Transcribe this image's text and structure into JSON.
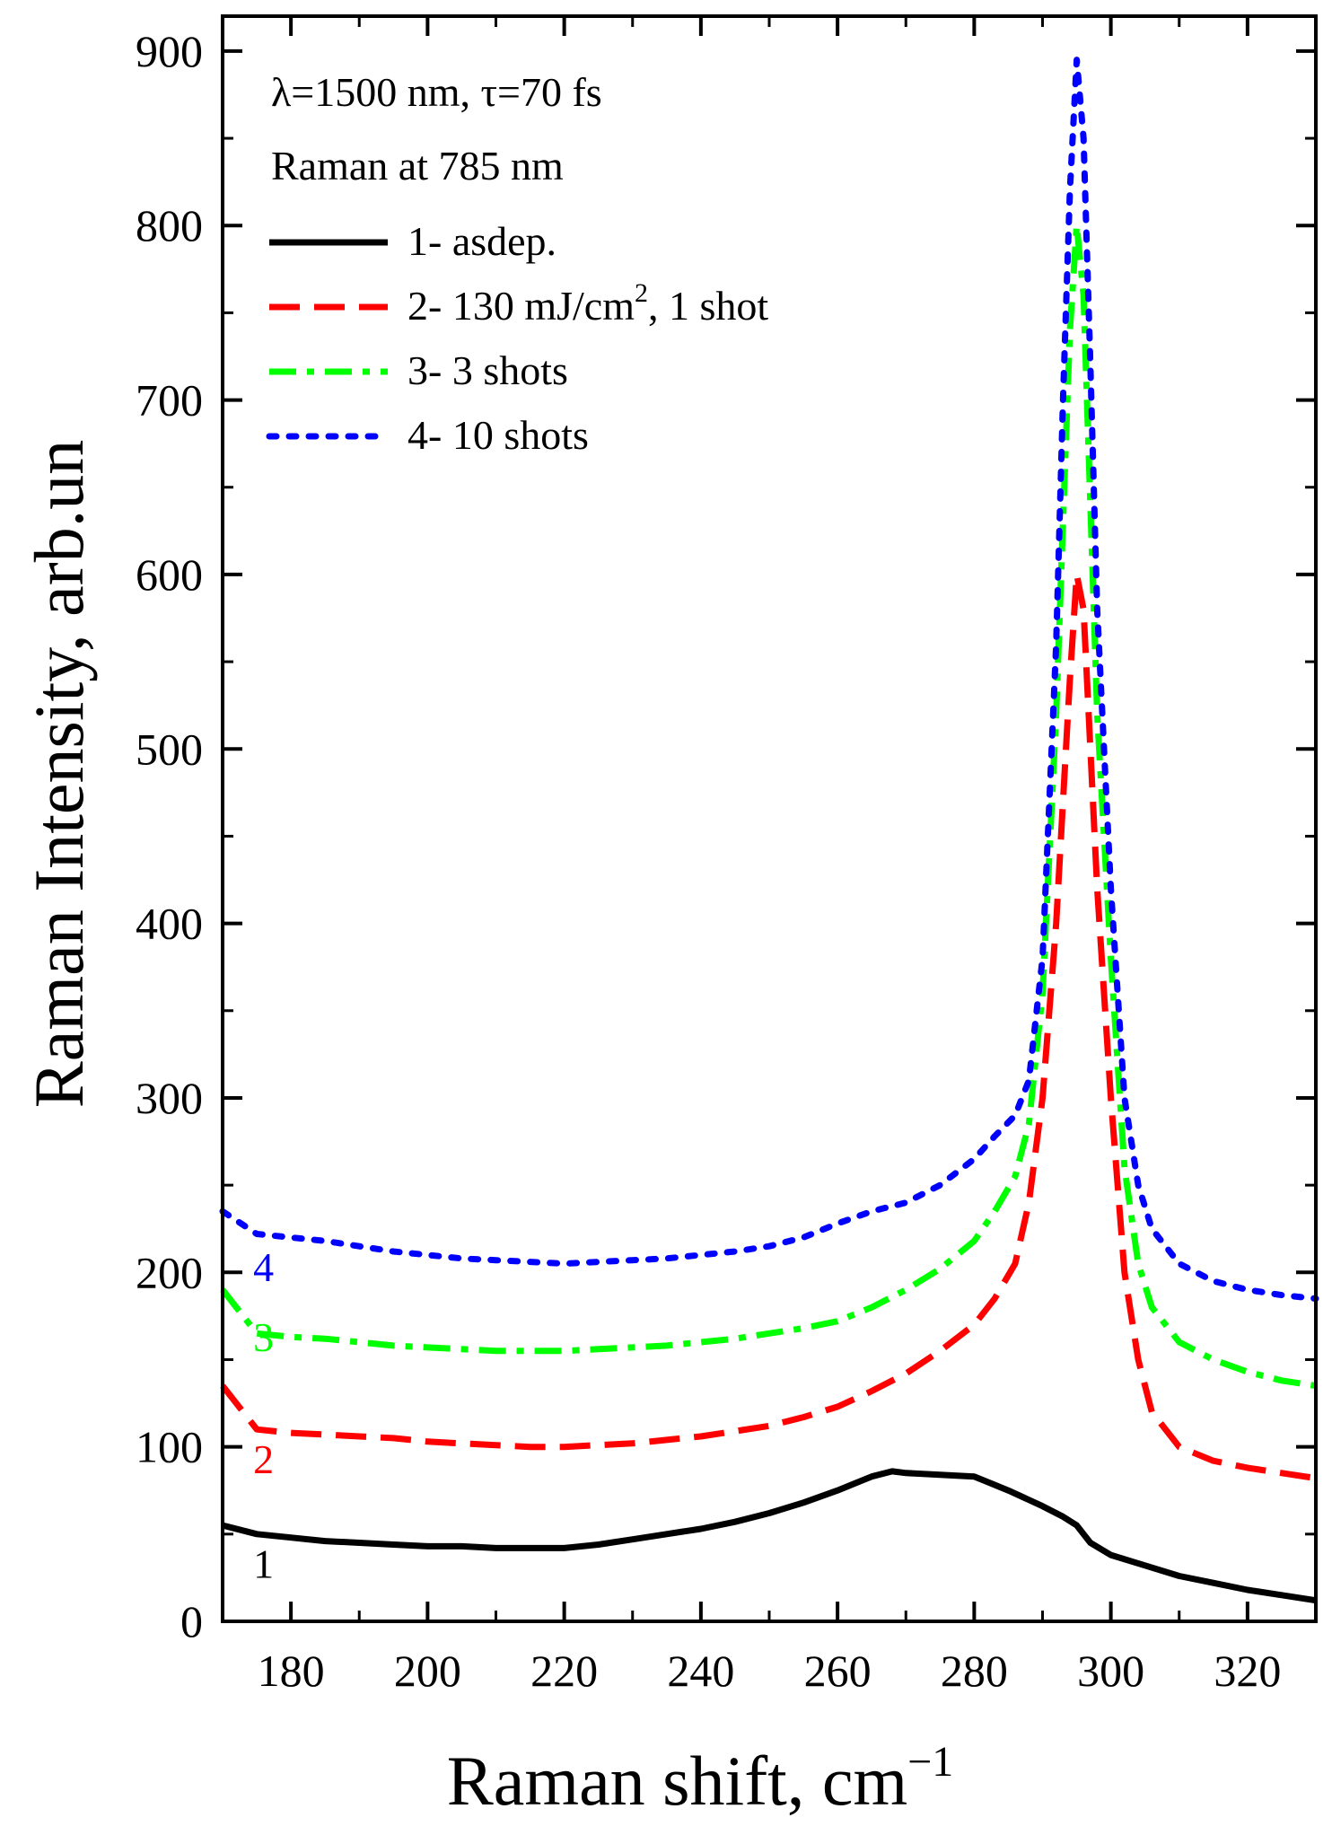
{
  "chart_data": {
    "type": "line",
    "xlabel": "Raman shift, cm",
    "xlabel_superscript": "−1",
    "ylabel": "Raman Intensity, arb.un",
    "xlim": [
      170,
      330
    ],
    "ylim": [
      0,
      920
    ],
    "xticks": [
      180,
      200,
      220,
      240,
      260,
      280,
      300,
      320
    ],
    "yticks": [
      0,
      100,
      200,
      300,
      400,
      500,
      600,
      700,
      800,
      900
    ],
    "annotations": {
      "line1": "λ=1500 nm, τ=70 fs",
      "line2": "Raman at 785 nm"
    },
    "legend": {
      "position": "top-left",
      "entries": [
        {
          "series": 0,
          "text": "1- asdep."
        },
        {
          "series": 1,
          "text": "2- 130 mJ/cm",
          "sup": "2",
          "after": ", 1 shot"
        },
        {
          "series": 2,
          "text": "3- 3 shots"
        },
        {
          "series": 3,
          "text": "4- 10 shots"
        }
      ]
    },
    "curve_labels": [
      {
        "text": "1",
        "x": 176,
        "y": 25,
        "series": 0
      },
      {
        "text": "2",
        "x": 176,
        "y": 85,
        "series": 1
      },
      {
        "text": "3",
        "x": 176,
        "y": 155,
        "series": 2
      },
      {
        "text": "4",
        "x": 176,
        "y": 195,
        "series": 3
      }
    ],
    "series": [
      {
        "name": "1- asdep.",
        "color": "#000000",
        "style": "solid",
        "x": [
          170,
          175,
          180,
          185,
          190,
          195,
          200,
          205,
          210,
          215,
          220,
          225,
          230,
          235,
          240,
          245,
          250,
          255,
          260,
          265,
          268,
          270,
          275,
          280,
          285,
          290,
          293,
          295,
          297,
          300,
          305,
          310,
          315,
          320,
          325,
          330
        ],
        "y": [
          55,
          50,
          48,
          46,
          45,
          44,
          43,
          43,
          42,
          42,
          42,
          44,
          47,
          50,
          53,
          57,
          62,
          68,
          75,
          83,
          86,
          85,
          84,
          83,
          75,
          66,
          60,
          55,
          45,
          38,
          32,
          26,
          22,
          18,
          15,
          12
        ]
      },
      {
        "name": "2- 130 mJ/cm2, 1 shot",
        "color": "#ff0000",
        "style": "dash",
        "x": [
          170,
          175,
          180,
          185,
          190,
          195,
          200,
          205,
          210,
          215,
          220,
          225,
          230,
          235,
          240,
          245,
          250,
          255,
          260,
          265,
          270,
          275,
          280,
          283,
          286,
          288,
          290,
          292,
          293,
          294,
          295,
          296,
          297,
          298,
          300,
          302,
          304,
          306,
          310,
          315,
          320,
          325,
          330
        ],
        "y": [
          135,
          110,
          108,
          107,
          106,
          105,
          103,
          102,
          101,
          100,
          100,
          101,
          102,
          104,
          106,
          109,
          112,
          117,
          123,
          132,
          142,
          155,
          170,
          185,
          205,
          240,
          300,
          400,
          470,
          540,
          600,
          580,
          500,
          420,
          300,
          200,
          150,
          120,
          100,
          92,
          88,
          85,
          82
        ]
      },
      {
        "name": "3- 3 shots",
        "color": "#00ff00",
        "style": "dashdot",
        "x": [
          170,
          175,
          180,
          185,
          190,
          195,
          200,
          205,
          210,
          215,
          220,
          225,
          230,
          235,
          240,
          245,
          250,
          255,
          260,
          265,
          270,
          275,
          280,
          283,
          286,
          288,
          290,
          292,
          293,
          294,
          295,
          296,
          297,
          298,
          300,
          302,
          304,
          306,
          310,
          315,
          320,
          325,
          330
        ],
        "y": [
          190,
          165,
          163,
          162,
          160,
          158,
          157,
          156,
          155,
          155,
          155,
          156,
          157,
          158,
          160,
          162,
          165,
          168,
          172,
          180,
          190,
          202,
          218,
          235,
          255,
          285,
          360,
          520,
          630,
          740,
          800,
          760,
          640,
          520,
          380,
          260,
          205,
          180,
          160,
          150,
          143,
          138,
          135
        ]
      },
      {
        "name": "4- 10 shots",
        "color": "#0000ff",
        "style": "dot",
        "x": [
          170,
          175,
          180,
          185,
          190,
          195,
          200,
          205,
          210,
          215,
          220,
          225,
          230,
          235,
          240,
          245,
          250,
          255,
          260,
          265,
          270,
          275,
          280,
          283,
          286,
          288,
          290,
          292,
          293,
          294,
          295,
          296,
          297,
          298,
          300,
          302,
          304,
          306,
          310,
          315,
          320,
          325,
          330
        ],
        "y": [
          235,
          222,
          220,
          218,
          215,
          212,
          210,
          208,
          207,
          206,
          205,
          206,
          207,
          208,
          210,
          212,
          215,
          220,
          228,
          235,
          240,
          250,
          265,
          278,
          290,
          310,
          380,
          560,
          700,
          820,
          895,
          850,
          720,
          580,
          420,
          300,
          250,
          225,
          205,
          195,
          190,
          187,
          185
        ]
      }
    ]
  }
}
